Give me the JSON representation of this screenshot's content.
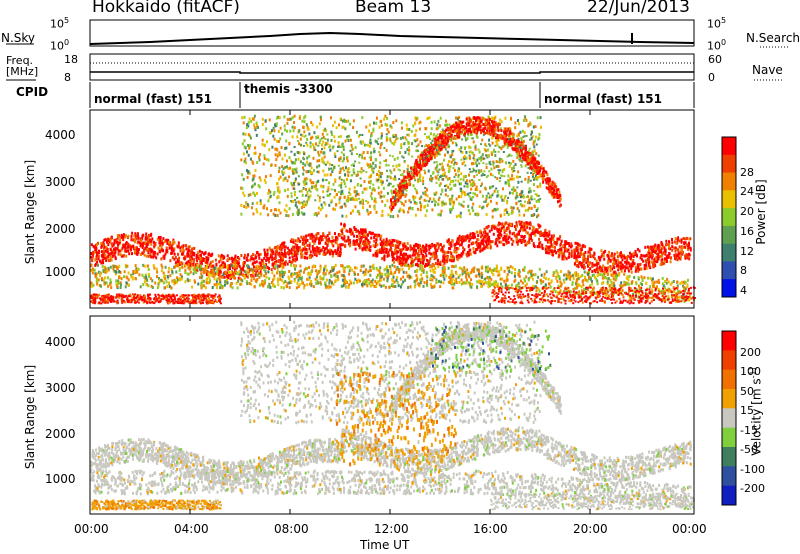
{
  "header": {
    "station": "Hokkaido (fitACF)",
    "beam": "Beam 13",
    "date": "22/Jun/2013"
  },
  "noise_panel": {
    "left_label": "N.Sky",
    "right_label": "N.Search",
    "left_ticks": [
      "10^5",
      "10^0"
    ],
    "right_ticks": [
      "10^5",
      "10^0"
    ]
  },
  "freq_panel": {
    "left_label_1": "Freq.",
    "left_label_2": "[MHz]",
    "right_label": "Nave",
    "left_ticks": [
      "18",
      "8"
    ],
    "right_ticks": [
      "60",
      "0"
    ]
  },
  "cpid": {
    "label": "CPID",
    "segments": [
      "normal (fast) 151",
      "themis -3300",
      "normal (fast) 151"
    ]
  },
  "chart_data": [
    {
      "type": "heatmap",
      "panel": "power",
      "ylabel": "Slant Range [km]",
      "yticks": [
        "4000",
        "3000",
        "2000",
        "1000"
      ],
      "ylim": [
        180,
        4500
      ],
      "colorbar_label": "Power [dB]",
      "colorbar_ticks": [
        "28",
        "24",
        "20",
        "16",
        "12",
        "8",
        "4"
      ],
      "colorbar_range": [
        0,
        32
      ],
      "colors": [
        "#0010e8",
        "#2f4fb0",
        "#3f7f6f",
        "#5fa050",
        "#8ccc2a",
        "#e8c000",
        "#f08000",
        "#f04000",
        "#ff0000"
      ]
    },
    {
      "type": "heatmap",
      "panel": "velocity",
      "ylabel": "Slant Range [km]",
      "yticks": [
        "4000",
        "3000",
        "2000",
        "1000"
      ],
      "ylim": [
        180,
        4500
      ],
      "colorbar_label": "Velocity [m s^-1]",
      "colorbar_ticks": [
        "200",
        "100",
        "50",
        "15",
        "-15",
        "-50",
        "-100",
        "-200"
      ],
      "colors": [
        "#1020c0",
        "#2f4f9f",
        "#3f7f5f",
        "#7fcf3f",
        "#c8c8c0",
        "#f0a000",
        "#f07000",
        "#f04000",
        "#ff0000"
      ]
    }
  ],
  "xaxis": {
    "label": "Time UT",
    "ticks": [
      "00:00",
      "04:00",
      "08:00",
      "12:00",
      "16:00",
      "20:00",
      "00:00"
    ]
  }
}
